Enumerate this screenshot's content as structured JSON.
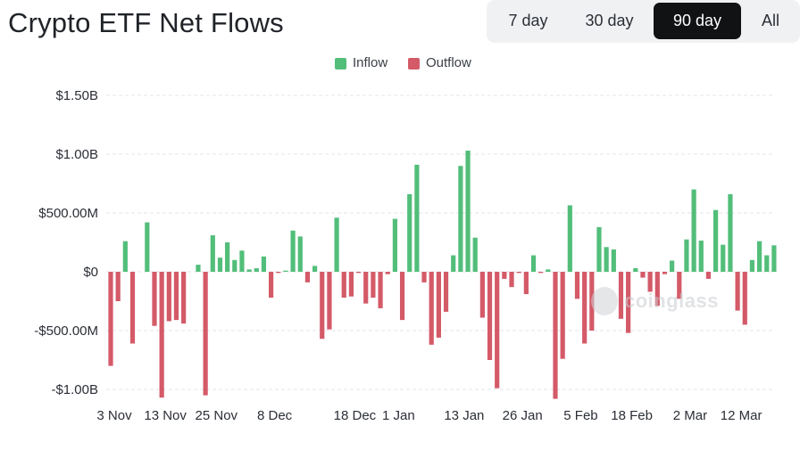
{
  "header": {
    "title": "Crypto ETF Net Flows",
    "ranges": [
      {
        "label": "7 day",
        "active": false
      },
      {
        "label": "30 day",
        "active": false
      },
      {
        "label": "90 day",
        "active": true
      },
      {
        "label": "All",
        "active": false
      }
    ]
  },
  "legend": {
    "inflow_label": "Inflow",
    "outflow_label": "Outflow"
  },
  "watermark": {
    "text": "coinglass"
  },
  "colors": {
    "inflow": "#52be7a",
    "outflow": "#d45a68",
    "grid": "#e3e5e8",
    "active_button": "#111214",
    "button_group_bg": "#f0f1f3"
  },
  "chart_data": {
    "type": "bar",
    "title": "Crypto ETF Net Flows",
    "xlabel": "",
    "ylabel": "",
    "ylim": [
      -1070000000,
      1500000000
    ],
    "y_ticks": [
      {
        "value": 1500000000,
        "label": "$1.50B"
      },
      {
        "value": 1000000000,
        "label": "$1.00B"
      },
      {
        "value": 500000000,
        "label": "$500.00M"
      },
      {
        "value": 0,
        "label": "$0"
      },
      {
        "value": -500000000,
        "label": "-$500.00M"
      },
      {
        "value": -1000000000,
        "label": "-$1.00B"
      }
    ],
    "x_tick_labels": [
      "3 Nov",
      "13 Nov",
      "25 Nov",
      "8 Dec",
      "18 Dec",
      "1 Jan",
      "13 Jan",
      "26 Jan",
      "5 Feb",
      "18 Feb",
      "2 Mar",
      "12 Mar"
    ],
    "x_tick_positions": [
      0,
      7,
      14,
      22,
      33,
      39,
      48,
      56,
      64,
      71,
      79,
      86
    ],
    "grid": true,
    "legend_position": "top-center",
    "series": [
      {
        "name": "Inflow",
        "values": [
          0,
          0,
          260,
          0,
          0,
          420,
          0,
          0,
          0,
          0,
          0,
          0,
          60,
          0,
          310,
          120,
          250,
          100,
          180,
          20,
          30,
          130,
          0,
          0,
          10,
          350,
          300,
          0,
          50,
          0,
          0,
          460,
          0,
          0,
          0,
          0,
          0,
          0,
          0,
          450,
          0,
          660,
          910,
          0,
          0,
          0,
          0,
          140,
          900,
          1030,
          290,
          0,
          0,
          0,
          0,
          0,
          0,
          0,
          140,
          0,
          20,
          0,
          0,
          565,
          0,
          0,
          0,
          380,
          210,
          190,
          0,
          0,
          30,
          0,
          0,
          0,
          0,
          95,
          0,
          275,
          700,
          265,
          0,
          525,
          230,
          660,
          0,
          0,
          100,
          260,
          140,
          225
        ]
      },
      {
        "name": "Outflow",
        "values": [
          -800,
          -250,
          0,
          -610,
          0,
          0,
          -460,
          -1070,
          -420,
          -410,
          -440,
          0,
          0,
          -1050,
          0,
          0,
          0,
          0,
          0,
          0,
          0,
          0,
          -220,
          -10,
          0,
          0,
          0,
          -90,
          0,
          -570,
          -490,
          0,
          -220,
          -210,
          -10,
          -270,
          -220,
          -310,
          -20,
          0,
          -410,
          0,
          0,
          -90,
          -620,
          -560,
          -340,
          0,
          0,
          0,
          0,
          -390,
          -750,
          -990,
          -60,
          -130,
          -10,
          -190,
          0,
          -10,
          0,
          -1080,
          -740,
          0,
          -230,
          -610,
          -500,
          0,
          0,
          0,
          -400,
          -520,
          0,
          -50,
          -170,
          -290,
          -20,
          0,
          -230,
          0,
          0,
          0,
          -60,
          0,
          0,
          0,
          -330,
          -450,
          0,
          0,
          0,
          0
        ]
      }
    ],
    "values_unit": "USD millions"
  }
}
